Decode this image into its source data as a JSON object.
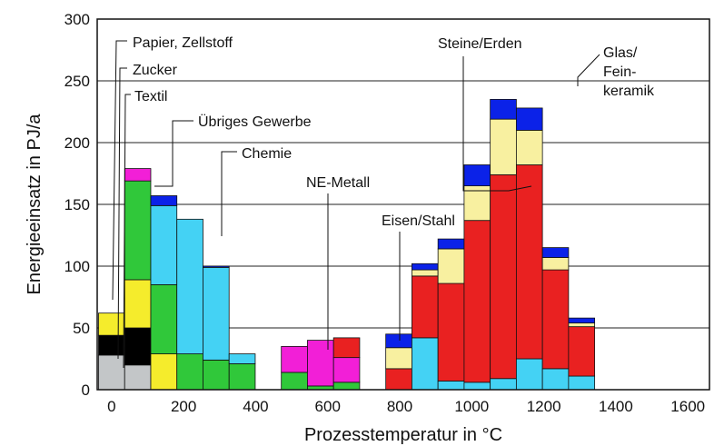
{
  "chart_data": {
    "type": "bar",
    "xlabel": "Prozesstemperatur in °C",
    "ylabel": "Energieeinsatz in PJ/a",
    "ylim": [
      0,
      300
    ],
    "xlim": [
      -40,
      1660
    ],
    "y_ticks": [
      0,
      50,
      100,
      150,
      200,
      250,
      300
    ],
    "x_ticks": [
      0,
      200,
      400,
      600,
      800,
      1000,
      1200,
      1400,
      1600
    ],
    "grid": "horizontal",
    "bin_width": 72.5,
    "categories": [
      "0",
      "72.5",
      "145",
      "217.5",
      "290",
      "362.5",
      "435",
      "507.5",
      "580",
      "652.5",
      "725",
      "797.5",
      "870",
      "942.5",
      "1015",
      "1087.5",
      "1160",
      "1232.5",
      "1305",
      "1377.5",
      "1450",
      "1522.5",
      "1595"
    ],
    "series": [
      {
        "name": "Papier, Zellstoff",
        "color": "#c3c6c8",
        "values": [
          28,
          20,
          0,
          0,
          0,
          0,
          0,
          0,
          0,
          0,
          0,
          0,
          0,
          0,
          0,
          0,
          0,
          0,
          0,
          0,
          0,
          0,
          0
        ]
      },
      {
        "name": "Zucker",
        "color": "#000000",
        "values": [
          16,
          30,
          0,
          0,
          0,
          0,
          0,
          0,
          0,
          0,
          0,
          0,
          0,
          0,
          0,
          0,
          0,
          0,
          0,
          0,
          0,
          0,
          0
        ]
      },
      {
        "name": "Textil",
        "color": "#f5ec2c",
        "values": [
          18,
          39,
          29,
          0,
          0,
          0,
          0,
          0,
          0,
          0,
          0,
          0,
          0,
          0,
          0,
          0,
          0,
          0,
          0,
          0,
          0,
          0,
          0
        ]
      },
      {
        "name": "Übriges Gewerbe",
        "color": "#30c83a",
        "values": [
          0,
          80,
          56,
          29,
          24,
          21,
          0,
          14,
          3,
          6,
          0,
          0,
          0,
          0,
          0,
          0,
          0,
          0,
          0,
          0,
          0,
          0,
          0
        ]
      },
      {
        "name": "Chemie",
        "color": "#44d2f4",
        "values": [
          0,
          0,
          64,
          109,
          75,
          8,
          0,
          0,
          0,
          0,
          0,
          0,
          42,
          7,
          6,
          9,
          25,
          17,
          11,
          0,
          0,
          0,
          0
        ]
      },
      {
        "name": "NE-Metall",
        "color": "#f21fd7",
        "values": [
          0,
          10,
          0,
          0,
          0,
          0,
          0,
          21,
          37,
          20,
          0,
          0,
          0,
          0,
          0,
          0,
          0,
          0,
          0,
          0,
          0,
          0,
          0
        ]
      },
      {
        "name": "Eisen/Stahl",
        "color": "#e92121",
        "values": [
          0,
          0,
          0,
          0,
          0,
          0,
          0,
          0,
          0,
          16,
          0,
          17,
          50,
          79,
          131,
          165,
          157,
          80,
          40,
          0,
          0,
          0,
          0
        ]
      },
      {
        "name": "Steine/Erden",
        "color": "#f8f0a0",
        "values": [
          0,
          0,
          0,
          0,
          0,
          0,
          0,
          0,
          0,
          0,
          0,
          17,
          5,
          28,
          28,
          45,
          28,
          10,
          3,
          0,
          0,
          0,
          0
        ]
      },
      {
        "name": "Glas/Feinkeramik",
        "color": "#0b22e8",
        "values": [
          0,
          0,
          8,
          0,
          1,
          0,
          0,
          0,
          0,
          0,
          0,
          11,
          5,
          8,
          17,
          16,
          18,
          8,
          4,
          0,
          0,
          0,
          0
        ]
      }
    ],
    "annotations": [
      "Papier, Zellstoff",
      "Zucker",
      "Textil",
      "Übriges Gewerbe",
      "Chemie",
      "NE-Metall",
      "Eisen/Stahl",
      "Steine/Erden",
      "Glas/",
      "Fein-",
      "keramik"
    ]
  }
}
